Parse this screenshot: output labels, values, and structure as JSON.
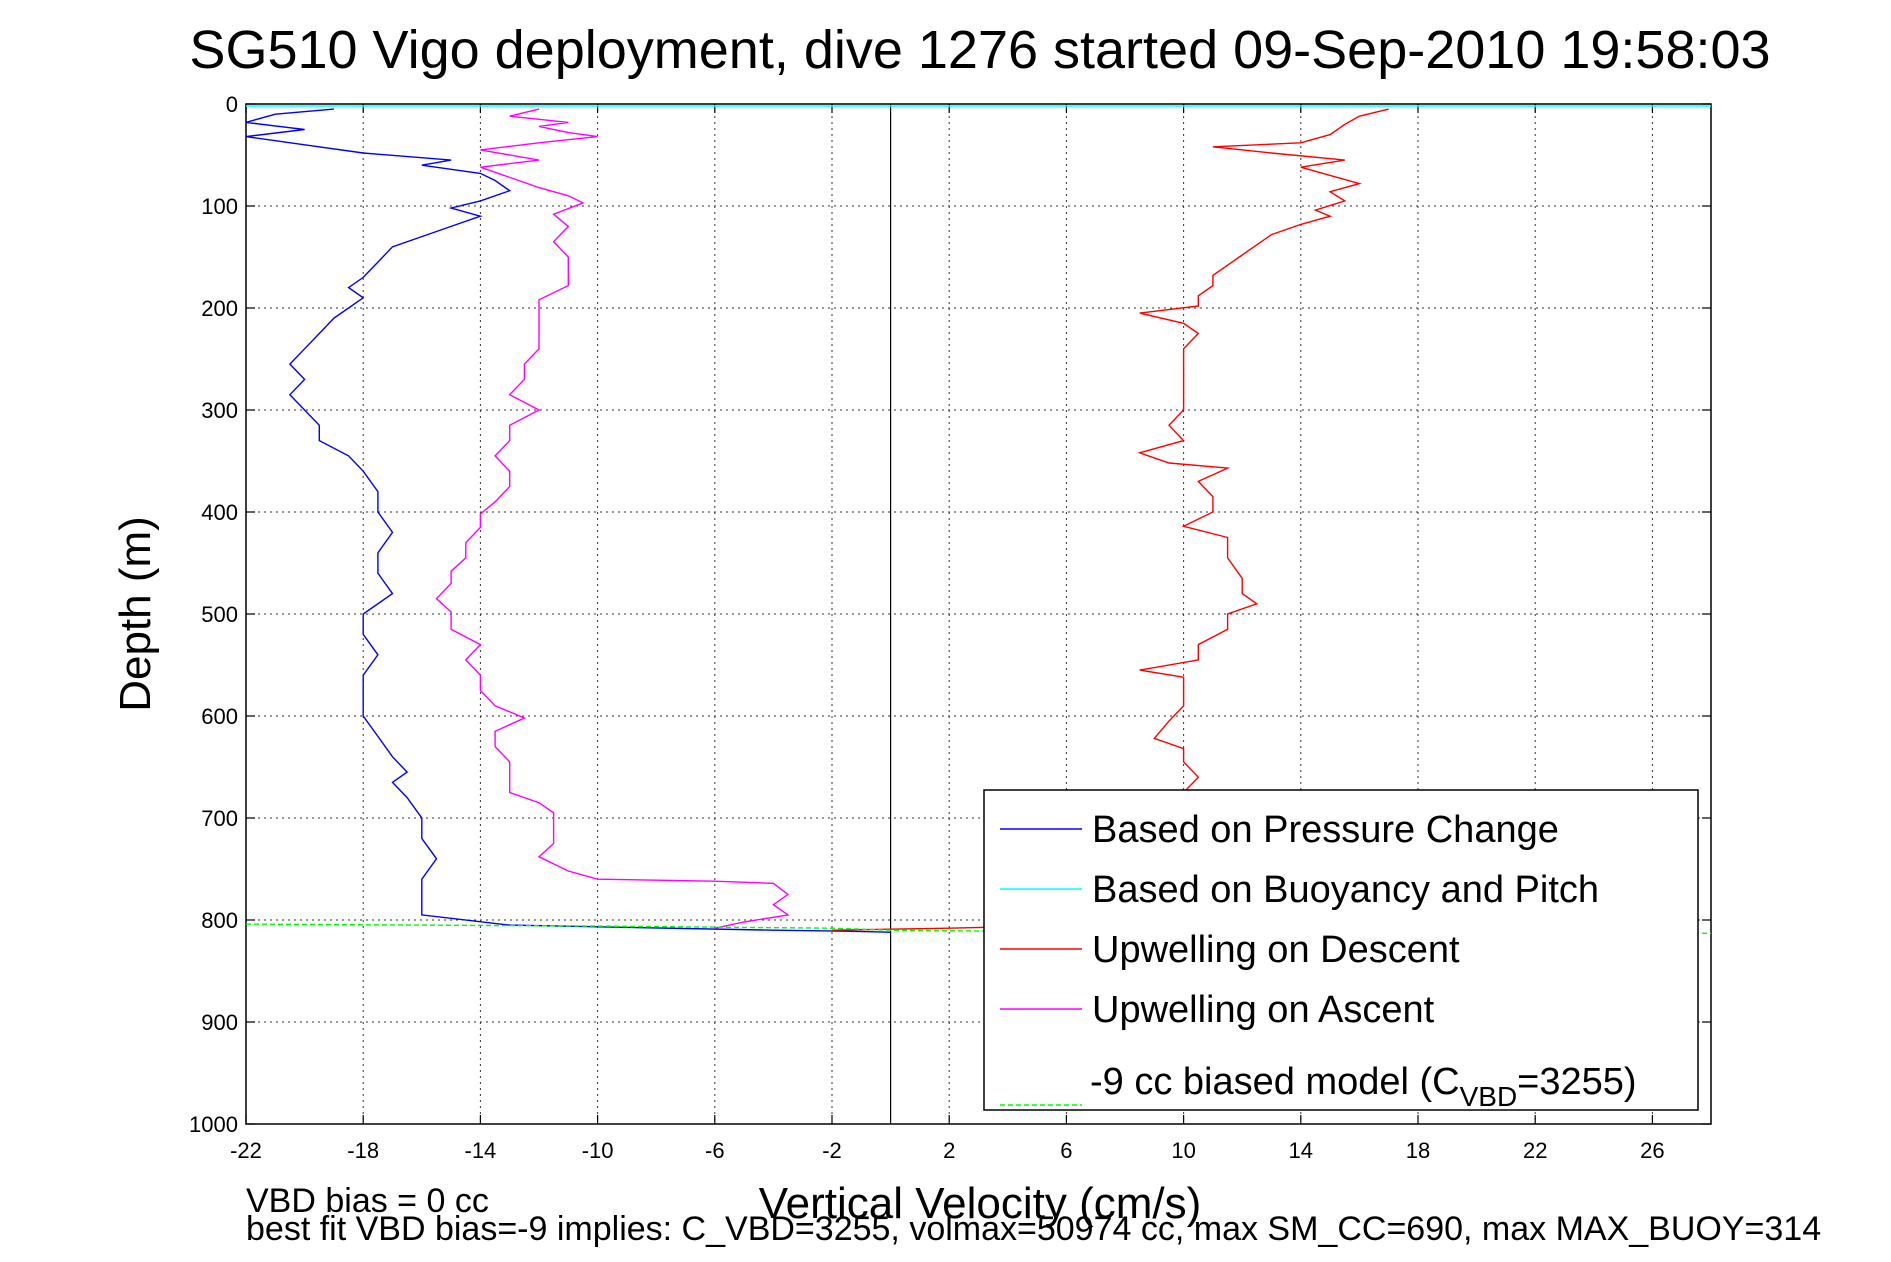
{
  "chart_data": {
    "type": "line",
    "title": "SG510 Vigo deployment, dive 1276 started 09-Sep-2010 19:58:03",
    "xlabel": "Vertical Velocity (cm/s)",
    "ylabel": "Depth (m)",
    "xlim": [
      -22,
      28
    ],
    "ylim": [
      0,
      1000
    ],
    "y_reversed": true,
    "x_ticks": [
      -22,
      -18,
      -14,
      -10,
      -6,
      -2,
      2,
      6,
      10,
      14,
      18,
      22,
      26
    ],
    "y_ticks": [
      0,
      100,
      200,
      300,
      400,
      500,
      600,
      700,
      800,
      900,
      1000
    ],
    "grid": true,
    "legend_position": "bottom-right",
    "zero_line_x": 0,
    "series": [
      {
        "name": "Based on Pressure Change",
        "color": "#0000ff",
        "points": [
          [
            -19,
            5
          ],
          [
            -21,
            10
          ],
          [
            -22,
            18
          ],
          [
            -20,
            25
          ],
          [
            -22,
            32
          ],
          [
            -20,
            40
          ],
          [
            -18,
            48
          ],
          [
            -15,
            55
          ],
          [
            -16,
            60
          ],
          [
            -14,
            68
          ],
          [
            -13.5,
            75
          ],
          [
            -13,
            85
          ],
          [
            -14,
            95
          ],
          [
            -15,
            102
          ],
          [
            -14,
            110
          ],
          [
            -15,
            120
          ],
          [
            -16,
            130
          ],
          [
            -17,
            140
          ],
          [
            -17.5,
            155
          ],
          [
            -18,
            170
          ],
          [
            -18.5,
            180
          ],
          [
            -18,
            190
          ],
          [
            -18.5,
            200
          ],
          [
            -19,
            210
          ],
          [
            -19.5,
            225
          ],
          [
            -20,
            240
          ],
          [
            -20.5,
            255
          ],
          [
            -20,
            270
          ],
          [
            -20.5,
            285
          ],
          [
            -20,
            300
          ],
          [
            -19.5,
            315
          ],
          [
            -19.5,
            330
          ],
          [
            -18.5,
            345
          ],
          [
            -18,
            360
          ],
          [
            -17.5,
            380
          ],
          [
            -17.5,
            400
          ],
          [
            -17,
            420
          ],
          [
            -17.5,
            440
          ],
          [
            -17.5,
            460
          ],
          [
            -17,
            480
          ],
          [
            -18,
            500
          ],
          [
            -18,
            520
          ],
          [
            -17.5,
            540
          ],
          [
            -18,
            560
          ],
          [
            -18,
            580
          ],
          [
            -18,
            600
          ],
          [
            -17.5,
            620
          ],
          [
            -17,
            640
          ],
          [
            -16.5,
            655
          ],
          [
            -17,
            665
          ],
          [
            -16.5,
            680
          ],
          [
            -16,
            700
          ],
          [
            -16,
            720
          ],
          [
            -15.5,
            740
          ],
          [
            -16,
            760
          ],
          [
            -16,
            780
          ],
          [
            -16,
            795
          ],
          [
            -13,
            805
          ],
          [
            -4,
            810
          ],
          [
            -1.5,
            811
          ],
          [
            0,
            812
          ]
        ]
      },
      {
        "name": "Based on Buoyancy and Pitch",
        "color": "#00ffff",
        "points": [
          [
            -22,
            2
          ],
          [
            28,
            2
          ]
        ]
      },
      {
        "name": "Upwelling on Descent",
        "color": "#ff0000",
        "points": [
          [
            17,
            5
          ],
          [
            16,
            12
          ],
          [
            15.5,
            20
          ],
          [
            15,
            30
          ],
          [
            14,
            38
          ],
          [
            11,
            42
          ],
          [
            13,
            48
          ],
          [
            15.5,
            55
          ],
          [
            14,
            62
          ],
          [
            15,
            70
          ],
          [
            16,
            78
          ],
          [
            15,
            86
          ],
          [
            15.5,
            95
          ],
          [
            14.5,
            104
          ],
          [
            15,
            110
          ],
          [
            14,
            118
          ],
          [
            13,
            128
          ],
          [
            12.5,
            138
          ],
          [
            12,
            148
          ],
          [
            11.5,
            158
          ],
          [
            11,
            168
          ],
          [
            11,
            178
          ],
          [
            10.5,
            188
          ],
          [
            10.5,
            198
          ],
          [
            8.5,
            205
          ],
          [
            10,
            215
          ],
          [
            10.5,
            225
          ],
          [
            10,
            240
          ],
          [
            10,
            255
          ],
          [
            10,
            270
          ],
          [
            10,
            285
          ],
          [
            10,
            300
          ],
          [
            9.5,
            315
          ],
          [
            10,
            330
          ],
          [
            8.5,
            342
          ],
          [
            9.5,
            352
          ],
          [
            11.5,
            357
          ],
          [
            10.5,
            370
          ],
          [
            11,
            385
          ],
          [
            11,
            400
          ],
          [
            10,
            414
          ],
          [
            11.5,
            425
          ],
          [
            11.5,
            445
          ],
          [
            12,
            465
          ],
          [
            12,
            480
          ],
          [
            12.5,
            490
          ],
          [
            11.5,
            500
          ],
          [
            11.5,
            515
          ],
          [
            10.5,
            530
          ],
          [
            10.5,
            545
          ],
          [
            8.5,
            555
          ],
          [
            10,
            562
          ],
          [
            10,
            575
          ],
          [
            10,
            590
          ],
          [
            9.5,
            605
          ],
          [
            9,
            622
          ],
          [
            10,
            632
          ],
          [
            10,
            645
          ],
          [
            10.5,
            660
          ],
          [
            10,
            675
          ],
          [
            10,
            700
          ],
          [
            10,
            730
          ],
          [
            10,
            760
          ],
          [
            9.5,
            790
          ],
          [
            5,
            806
          ],
          [
            2,
            808
          ],
          [
            -2,
            810
          ]
        ]
      },
      {
        "name": "Upwelling on Ascent",
        "color": "#ff00ff",
        "points": [
          [
            -12,
            5
          ],
          [
            -13,
            12
          ],
          [
            -11,
            18
          ],
          [
            -12,
            22
          ],
          [
            -11,
            28
          ],
          [
            -10,
            32
          ],
          [
            -12,
            38
          ],
          [
            -14,
            45
          ],
          [
            -12,
            55
          ],
          [
            -14,
            62
          ],
          [
            -13,
            72
          ],
          [
            -12,
            82
          ],
          [
            -11,
            90
          ],
          [
            -10.5,
            97
          ],
          [
            -11.5,
            108
          ],
          [
            -11,
            120
          ],
          [
            -11.5,
            135
          ],
          [
            -11,
            150
          ],
          [
            -11,
            165
          ],
          [
            -11,
            178
          ],
          [
            -12,
            192
          ],
          [
            -12,
            205
          ],
          [
            -12,
            222
          ],
          [
            -12,
            240
          ],
          [
            -12.5,
            255
          ],
          [
            -12.5,
            270
          ],
          [
            -13,
            285
          ],
          [
            -12,
            300
          ],
          [
            -13,
            315
          ],
          [
            -13,
            330
          ],
          [
            -13.5,
            345
          ],
          [
            -13,
            360
          ],
          [
            -13,
            375
          ],
          [
            -13.5,
            390
          ],
          [
            -14,
            402
          ],
          [
            -14,
            415
          ],
          [
            -14.5,
            430
          ],
          [
            -14.5,
            445
          ],
          [
            -15,
            458
          ],
          [
            -15,
            470
          ],
          [
            -15.5,
            485
          ],
          [
            -15,
            498
          ],
          [
            -15,
            515
          ],
          [
            -14,
            530
          ],
          [
            -14.5,
            545
          ],
          [
            -14,
            560
          ],
          [
            -14,
            575
          ],
          [
            -13.5,
            590
          ],
          [
            -12.5,
            602
          ],
          [
            -13.5,
            615
          ],
          [
            -13.5,
            630
          ],
          [
            -13,
            645
          ],
          [
            -13,
            660
          ],
          [
            -13,
            675
          ],
          [
            -12,
            685
          ],
          [
            -11.5,
            695
          ],
          [
            -11.5,
            710
          ],
          [
            -11.5,
            725
          ],
          [
            -12,
            738
          ],
          [
            -11,
            752
          ],
          [
            -10,
            760
          ],
          [
            -6,
            762
          ],
          [
            -4,
            764
          ],
          [
            -3.5,
            775
          ],
          [
            -4,
            785
          ],
          [
            -3.5,
            795
          ],
          [
            -5,
            802
          ],
          [
            -6,
            808
          ]
        ]
      },
      {
        "name": "-9 cc biased model (C_VBD=3255)",
        "name_main": "-9 cc biased model (C",
        "name_sub": "VBD",
        "name_tail": "=3255)",
        "color": "#00ff00",
        "dashed": true,
        "points": [
          [
            -22,
            804
          ],
          [
            -10,
            806
          ],
          [
            -2,
            808
          ],
          [
            0,
            810
          ],
          [
            4,
            811
          ],
          [
            12,
            812
          ],
          [
            28,
            813
          ]
        ]
      }
    ],
    "annotations": {
      "vbd_bias": "VBD bias = 0 cc",
      "best_fit": "best fit VBD bias=-9 implies: C_VBD=3255, volmax=50974 cc, max SM_CC=690, max MAX_BUOY=314"
    }
  }
}
